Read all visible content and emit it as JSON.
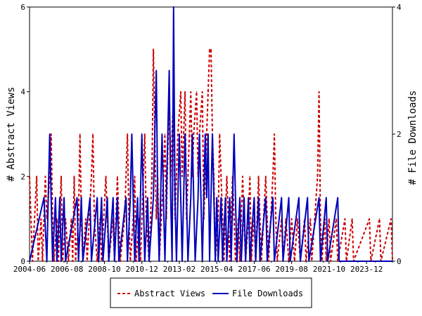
{
  "chart_data": {
    "type": "line",
    "title": "",
    "xlabel": "",
    "ylabel_left": "# Abstract Views",
    "ylabel_right": "# File Downloads",
    "x_tick_labels": [
      "2004-06",
      "2006-08",
      "2008-10",
      "2010-12",
      "2013-02",
      "2015-04",
      "2017-06",
      "2019-08",
      "2021-10",
      "2023-12"
    ],
    "x_start": "2004-06",
    "x_end": "2025-06",
    "y_left_ticks": [
      "0",
      "2",
      "4",
      "6"
    ],
    "y_right_ticks": [
      "0",
      "2",
      "4"
    ],
    "ylim_left": [
      0,
      6
    ],
    "ylim_right": [
      0,
      4
    ],
    "grid": false,
    "legend_position": "bottom",
    "colors": {
      "abstract_views": "#cc0000",
      "file_downloads": "#0000bb"
    },
    "series": [
      {
        "name": "Abstract Views",
        "axis": "left",
        "style": "dashed",
        "points": [
          [
            "2004-06",
            2
          ],
          [
            "2004-08",
            0
          ],
          [
            "2004-11",
            2
          ],
          [
            "2004-12",
            0
          ],
          [
            "2005-02",
            1
          ],
          [
            "2005-03",
            0
          ],
          [
            "2005-05",
            2
          ],
          [
            "2005-06",
            1
          ],
          [
            "2005-08",
            2
          ],
          [
            "2005-09",
            3
          ],
          [
            "2005-10",
            1
          ],
          [
            "2005-11",
            0
          ],
          [
            "2006-01",
            1
          ],
          [
            "2006-02",
            0
          ],
          [
            "2006-04",
            2
          ],
          [
            "2006-05",
            0
          ],
          [
            "2006-07",
            1
          ],
          [
            "2006-09",
            0
          ],
          [
            "2006-11",
            1
          ],
          [
            "2006-12",
            0
          ],
          [
            "2007-01",
            2
          ],
          [
            "2007-02",
            0
          ],
          [
            "2007-04",
            1
          ],
          [
            "2007-05",
            3
          ],
          [
            "2007-06",
            1
          ],
          [
            "2007-07",
            0
          ],
          [
            "2007-09",
            1
          ],
          [
            "2007-10",
            0
          ],
          [
            "2008-01",
            2
          ],
          [
            "2008-02",
            3
          ],
          [
            "2008-03",
            1
          ],
          [
            "2008-05",
            0
          ],
          [
            "2008-07",
            1
          ],
          [
            "2008-08",
            0
          ],
          [
            "2008-11",
            2
          ],
          [
            "2008-12",
            1
          ],
          [
            "2009-01",
            0
          ],
          [
            "2009-04",
            1
          ],
          [
            "2009-05",
            0
          ],
          [
            "2009-07",
            2
          ],
          [
            "2009-08",
            1
          ],
          [
            "2009-09",
            0
          ],
          [
            "2009-12",
            1
          ],
          [
            "2010-01",
            2
          ],
          [
            "2010-02",
            3
          ],
          [
            "2010-03",
            1
          ],
          [
            "2010-04",
            0
          ],
          [
            "2010-06",
            1
          ],
          [
            "2010-07",
            2
          ],
          [
            "2010-08",
            0
          ],
          [
            "2010-10",
            1
          ],
          [
            "2010-11",
            0
          ],
          [
            "2011-01",
            2
          ],
          [
            "2011-02",
            3
          ],
          [
            "2011-03",
            1
          ],
          [
            "2011-05",
            0
          ],
          [
            "2011-07",
            2
          ],
          [
            "2011-08",
            5
          ],
          [
            "2011-09",
            3
          ],
          [
            "2011-10",
            1
          ],
          [
            "2011-11",
            2
          ],
          [
            "2011-12",
            0
          ],
          [
            "2012-03",
            2
          ],
          [
            "2012-04",
            3
          ],
          [
            "2012-05",
            1
          ],
          [
            "2012-07",
            4
          ],
          [
            "2012-08",
            2
          ],
          [
            "2012-09",
            3
          ],
          [
            "2012-10",
            4
          ],
          [
            "2012-11",
            1
          ],
          [
            "2012-12",
            2
          ],
          [
            "2013-01",
            3
          ],
          [
            "2013-03",
            4
          ],
          [
            "2013-04",
            2
          ],
          [
            "2013-05",
            3
          ],
          [
            "2013-06",
            4
          ],
          [
            "2013-07",
            1
          ],
          [
            "2013-09",
            3
          ],
          [
            "2013-10",
            4
          ],
          [
            "2013-11",
            2
          ],
          [
            "2013-12",
            3
          ],
          [
            "2014-02",
            4
          ],
          [
            "2014-03",
            2
          ],
          [
            "2014-04",
            3
          ],
          [
            "2014-06",
            4
          ],
          [
            "2014-07",
            1
          ],
          [
            "2014-09",
            3
          ],
          [
            "2014-10",
            4
          ],
          [
            "2014-11",
            5
          ],
          [
            "2014-12",
            5
          ],
          [
            "2015-01",
            3
          ],
          [
            "2015-02",
            2
          ],
          [
            "2015-03",
            0
          ],
          [
            "2015-05",
            1
          ],
          [
            "2015-06",
            3
          ],
          [
            "2015-07",
            2
          ],
          [
            "2015-08",
            1
          ],
          [
            "2015-09",
            0
          ],
          [
            "2015-11",
            2
          ],
          [
            "2015-12",
            1
          ],
          [
            "2016-01",
            0
          ],
          [
            "2016-03",
            2
          ],
          [
            "2016-04",
            1
          ],
          [
            "2016-05",
            0
          ],
          [
            "2016-07",
            1
          ],
          [
            "2016-08",
            0
          ],
          [
            "2016-10",
            2
          ],
          [
            "2016-11",
            1
          ],
          [
            "2016-12",
            0
          ],
          [
            "2017-02",
            1
          ],
          [
            "2017-03",
            2
          ],
          [
            "2017-04",
            0
          ],
          [
            "2017-06",
            1
          ],
          [
            "2017-07",
            0
          ],
          [
            "2017-09",
            2
          ],
          [
            "2017-10",
            1
          ],
          [
            "2017-11",
            0
          ],
          [
            "2018-02",
            2
          ],
          [
            "2018-03",
            1
          ],
          [
            "2018-04",
            0
          ],
          [
            "2018-07",
            2
          ],
          [
            "2018-08",
            3
          ],
          [
            "2018-09",
            1
          ],
          [
            "2018-10",
            0
          ],
          [
            "2019-01",
            1
          ],
          [
            "2019-02",
            0
          ],
          [
            "2019-04",
            1
          ],
          [
            "2019-06",
            0
          ],
          [
            "2019-08",
            1
          ],
          [
            "2019-10",
            0
          ],
          [
            "2019-12",
            1
          ],
          [
            "2020-02",
            0
          ],
          [
            "2020-05",
            1
          ],
          [
            "2020-06",
            0
          ],
          [
            "2020-09",
            1
          ],
          [
            "2020-10",
            0
          ],
          [
            "2021-02",
            2
          ],
          [
            "2021-03",
            4
          ],
          [
            "2021-04",
            1
          ],
          [
            "2021-05",
            0
          ],
          [
            "2021-07",
            1
          ],
          [
            "2021-08",
            0
          ],
          [
            "2021-10",
            1
          ],
          [
            "2021-11",
            0
          ],
          [
            "2022-03",
            1
          ],
          [
            "2022-04",
            0
          ],
          [
            "2022-09",
            1
          ],
          [
            "2022-10",
            0
          ],
          [
            "2023-02",
            1
          ],
          [
            "2023-03",
            0
          ],
          [
            "2024-02",
            1
          ],
          [
            "2024-03",
            0
          ],
          [
            "2024-09",
            1
          ],
          [
            "2024-10",
            0
          ],
          [
            "2025-05",
            1
          ],
          [
            "2025-06",
            0
          ]
        ]
      },
      {
        "name": "File Downloads",
        "axis": "right",
        "style": "solid",
        "points": [
          [
            "2004-06",
            0
          ],
          [
            "2005-04",
            1
          ],
          [
            "2005-06",
            0
          ],
          [
            "2005-07",
            1
          ],
          [
            "2005-08",
            2
          ],
          [
            "2005-09",
            1
          ],
          [
            "2005-10",
            0
          ],
          [
            "2005-12",
            1
          ],
          [
            "2006-01",
            0
          ],
          [
            "2006-03",
            1
          ],
          [
            "2006-04",
            0
          ],
          [
            "2006-06",
            1
          ],
          [
            "2006-07",
            0
          ],
          [
            "2007-03",
            1
          ],
          [
            "2007-04",
            0
          ],
          [
            "2007-06",
            1
          ],
          [
            "2007-07",
            0
          ],
          [
            "2007-12",
            1
          ],
          [
            "2008-01",
            0
          ],
          [
            "2008-05",
            1
          ],
          [
            "2008-06",
            0
          ],
          [
            "2008-08",
            1
          ],
          [
            "2008-09",
            0
          ],
          [
            "2008-12",
            1
          ],
          [
            "2009-01",
            0
          ],
          [
            "2009-04",
            1
          ],
          [
            "2009-05",
            0
          ],
          [
            "2009-07",
            1
          ],
          [
            "2009-08",
            0
          ],
          [
            "2010-01",
            1
          ],
          [
            "2010-02",
            0
          ],
          [
            "2010-04",
            1
          ],
          [
            "2010-05",
            2
          ],
          [
            "2010-06",
            1
          ],
          [
            "2010-07",
            0
          ],
          [
            "2010-09",
            1
          ],
          [
            "2010-10",
            0
          ],
          [
            "2010-12",
            2
          ],
          [
            "2011-01",
            1
          ],
          [
            "2011-02",
            0
          ],
          [
            "2011-04",
            1
          ],
          [
            "2011-05",
            0
          ],
          [
            "2011-08",
            1
          ],
          [
            "2011-09",
            2
          ],
          [
            "2011-10",
            3
          ],
          [
            "2011-11",
            1
          ],
          [
            "2011-12",
            0
          ],
          [
            "2012-02",
            2
          ],
          [
            "2012-03",
            1
          ],
          [
            "2012-04",
            0
          ],
          [
            "2012-06",
            2
          ],
          [
            "2012-07",
            3
          ],
          [
            "2012-08",
            1
          ],
          [
            "2012-09",
            0
          ],
          [
            "2012-10",
            4
          ],
          [
            "2012-11",
            1
          ],
          [
            "2012-12",
            0
          ],
          [
            "2013-02",
            2
          ],
          [
            "2013-03",
            1
          ],
          [
            "2013-04",
            0
          ],
          [
            "2013-06",
            2
          ],
          [
            "2013-07",
            1
          ],
          [
            "2013-08",
            0
          ],
          [
            "2013-10",
            1
          ],
          [
            "2013-11",
            2
          ],
          [
            "2013-12",
            1
          ],
          [
            "2014-01",
            0
          ],
          [
            "2014-03",
            1
          ],
          [
            "2014-04",
            2
          ],
          [
            "2014-05",
            1
          ],
          [
            "2014-06",
            0
          ],
          [
            "2014-08",
            2
          ],
          [
            "2014-09",
            1
          ],
          [
            "2014-10",
            2
          ],
          [
            "2014-11",
            0
          ],
          [
            "2015-01",
            2
          ],
          [
            "2015-02",
            1
          ],
          [
            "2015-03",
            0
          ],
          [
            "2015-04",
            1
          ],
          [
            "2015-05",
            0
          ],
          [
            "2015-07",
            1
          ],
          [
            "2015-08",
            0
          ],
          [
            "2015-10",
            1
          ],
          [
            "2015-11",
            0
          ],
          [
            "2016-01",
            1
          ],
          [
            "2016-02",
            0
          ],
          [
            "2016-04",
            2
          ],
          [
            "2016-05",
            1
          ],
          [
            "2016-06",
            0
          ],
          [
            "2016-08",
            1
          ],
          [
            "2016-09",
            0
          ],
          [
            "2016-11",
            1
          ],
          [
            "2016-12",
            0
          ],
          [
            "2017-02",
            1
          ],
          [
            "2017-03",
            0
          ],
          [
            "2017-06",
            1
          ],
          [
            "2017-07",
            0
          ],
          [
            "2017-09",
            1
          ],
          [
            "2017-10",
            0
          ],
          [
            "2018-02",
            1
          ],
          [
            "2018-03",
            0
          ],
          [
            "2018-07",
            1
          ],
          [
            "2018-08",
            0
          ],
          [
            "2019-01",
            1
          ],
          [
            "2019-02",
            0
          ],
          [
            "2019-06",
            1
          ],
          [
            "2019-07",
            0
          ],
          [
            "2020-01",
            1
          ],
          [
            "2020-02",
            0
          ],
          [
            "2020-07",
            1
          ],
          [
            "2020-08",
            0
          ],
          [
            "2021-03",
            1
          ],
          [
            "2021-04",
            0
          ],
          [
            "2021-08",
            1
          ],
          [
            "2021-09",
            0
          ],
          [
            "2022-04",
            1
          ],
          [
            "2022-05",
            0
          ],
          [
            "2025-06",
            0
          ]
        ]
      }
    ]
  }
}
